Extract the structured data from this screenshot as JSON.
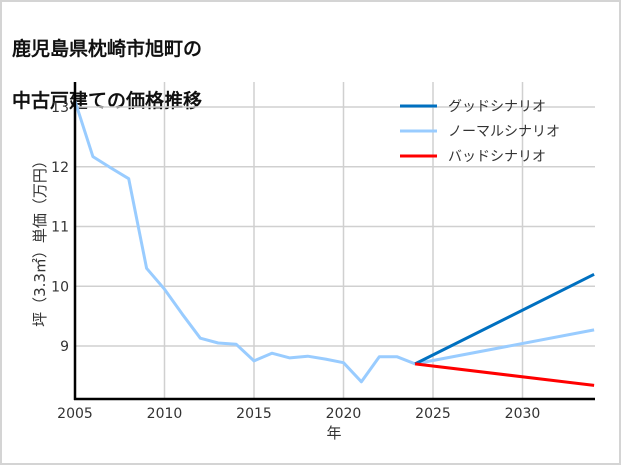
{
  "title_line1": "鹿児島県枕崎市旭町の",
  "title_line2": "中古戸建ての価格推移",
  "chart_data": {
    "type": "line",
    "title": "鹿児島県枕崎市旭町の中古戸建ての価格推移",
    "xlabel": "年",
    "ylabel": "坪（3.3㎡）単価（万円）",
    "xlim": [
      2005,
      2034
    ],
    "ylim": [
      8.1,
      13.4
    ],
    "x_ticks": [
      2005,
      2010,
      2015,
      2020,
      2025,
      2030
    ],
    "y_ticks": [
      9,
      10,
      11,
      12,
      13
    ],
    "grid": true,
    "legend_position": "upper right",
    "series": [
      {
        "name": "ノーマルシナリオ",
        "color": "#99ccff",
        "x": [
          2005,
          2006,
          2007,
          2008,
          2009,
          2010,
          2011,
          2012,
          2013,
          2014,
          2015,
          2016,
          2017,
          2018,
          2019,
          2020,
          2021,
          2022,
          2023,
          2024,
          2034
        ],
        "values": [
          13.1,
          12.17,
          11.98,
          11.8,
          10.3,
          9.95,
          9.53,
          9.13,
          9.05,
          9.03,
          8.75,
          8.88,
          8.8,
          8.83,
          8.78,
          8.72,
          8.4,
          8.82,
          8.82,
          8.7,
          9.27
        ]
      },
      {
        "name": "グッドシナリオ",
        "color": "#0070c0",
        "x": [
          2024,
          2034
        ],
        "values": [
          8.7,
          10.2
        ]
      },
      {
        "name": "バッドシナリオ",
        "color": "#ff0000",
        "x": [
          2024,
          2034
        ],
        "values": [
          8.7,
          8.34
        ]
      }
    ],
    "legend": [
      "グッドシナリオ",
      "ノーマルシナリオ",
      "バッドシナリオ"
    ]
  }
}
